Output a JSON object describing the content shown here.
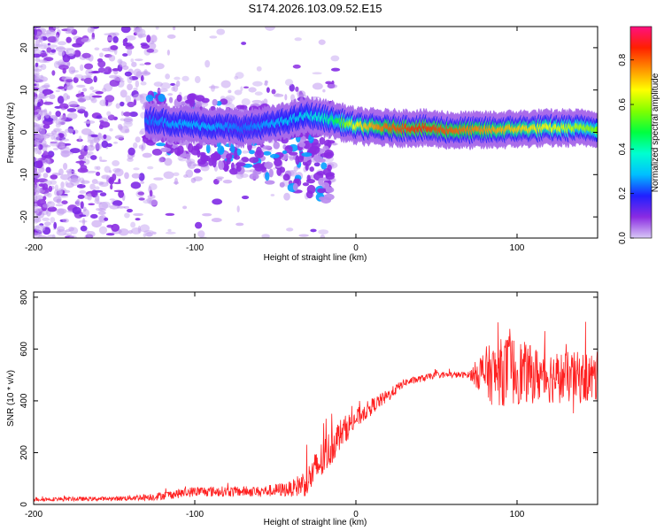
{
  "title": "S174.2026.103.09.52.E15",
  "chart_data": [
    {
      "type": "heatmap",
      "name": "spectrogram",
      "xlabel": "Height of straight line (km)",
      "ylabel": "Frequency (Hz)",
      "xlim": [
        -200,
        150
      ],
      "ylim": [
        -25,
        25
      ],
      "xticks": [
        "-200",
        "-100",
        "0",
        "100"
      ],
      "yticks": [
        "-20",
        "-10",
        "0",
        "10",
        "20"
      ],
      "colorbar": {
        "label": "Normalized spectral amplitude",
        "range": [
          0.0,
          0.95
        ],
        "ticks": [
          "0.0",
          "0.2",
          "0.4",
          "0.6",
          "0.8"
        ]
      },
      "ridge": {
        "description_points_x": [
          -130,
          -110,
          -90,
          -70,
          -50,
          -30,
          -15,
          0,
          20,
          40,
          60,
          80,
          100,
          120,
          150
        ],
        "frequency_y": [
          3,
          2,
          1.5,
          1,
          2,
          4,
          3,
          1.5,
          1,
          1,
          0.5,
          0.5,
          0.8,
          1,
          1
        ],
        "peak_amplitude": [
          0.25,
          0.3,
          0.3,
          0.25,
          0.3,
          0.35,
          0.45,
          0.7,
          0.85,
          0.9,
          0.85,
          0.8,
          0.75,
          0.7,
          0.6
        ]
      },
      "colors": {
        "low": "#d6c2f5",
        "mid": "#7a1ff0",
        "high": "#ff2020"
      }
    },
    {
      "type": "line",
      "name": "snr",
      "xlabel": "Height of straight line (km)",
      "ylabel": "SNR (10 * v/v)",
      "xlim": [
        -200,
        150
      ],
      "ylim": [
        0,
        820
      ],
      "xticks": [
        "-200",
        "-100",
        "0",
        "100"
      ],
      "yticks": [
        "0",
        "200",
        "400",
        "600",
        "800"
      ],
      "series": [
        {
          "name": "SNR",
          "color": "#ff2020",
          "trend_x": [
            -200,
            -150,
            -125,
            -100,
            -60,
            -40,
            -30,
            -20,
            -10,
            0,
            10,
            20,
            30,
            50,
            70,
            80,
            85,
            95,
            110,
            130,
            150
          ],
          "trend_y": [
            20,
            22,
            30,
            50,
            50,
            60,
            90,
            180,
            270,
            330,
            380,
            420,
            470,
            500,
            500,
            510,
            500,
            520,
            500,
            490,
            490
          ],
          "noise_amplitude": [
            8,
            8,
            15,
            20,
            20,
            30,
            60,
            80,
            60,
            40,
            30,
            25,
            15,
            12,
            12,
            100,
            120,
            140,
            110,
            100,
            100
          ]
        }
      ]
    }
  ]
}
